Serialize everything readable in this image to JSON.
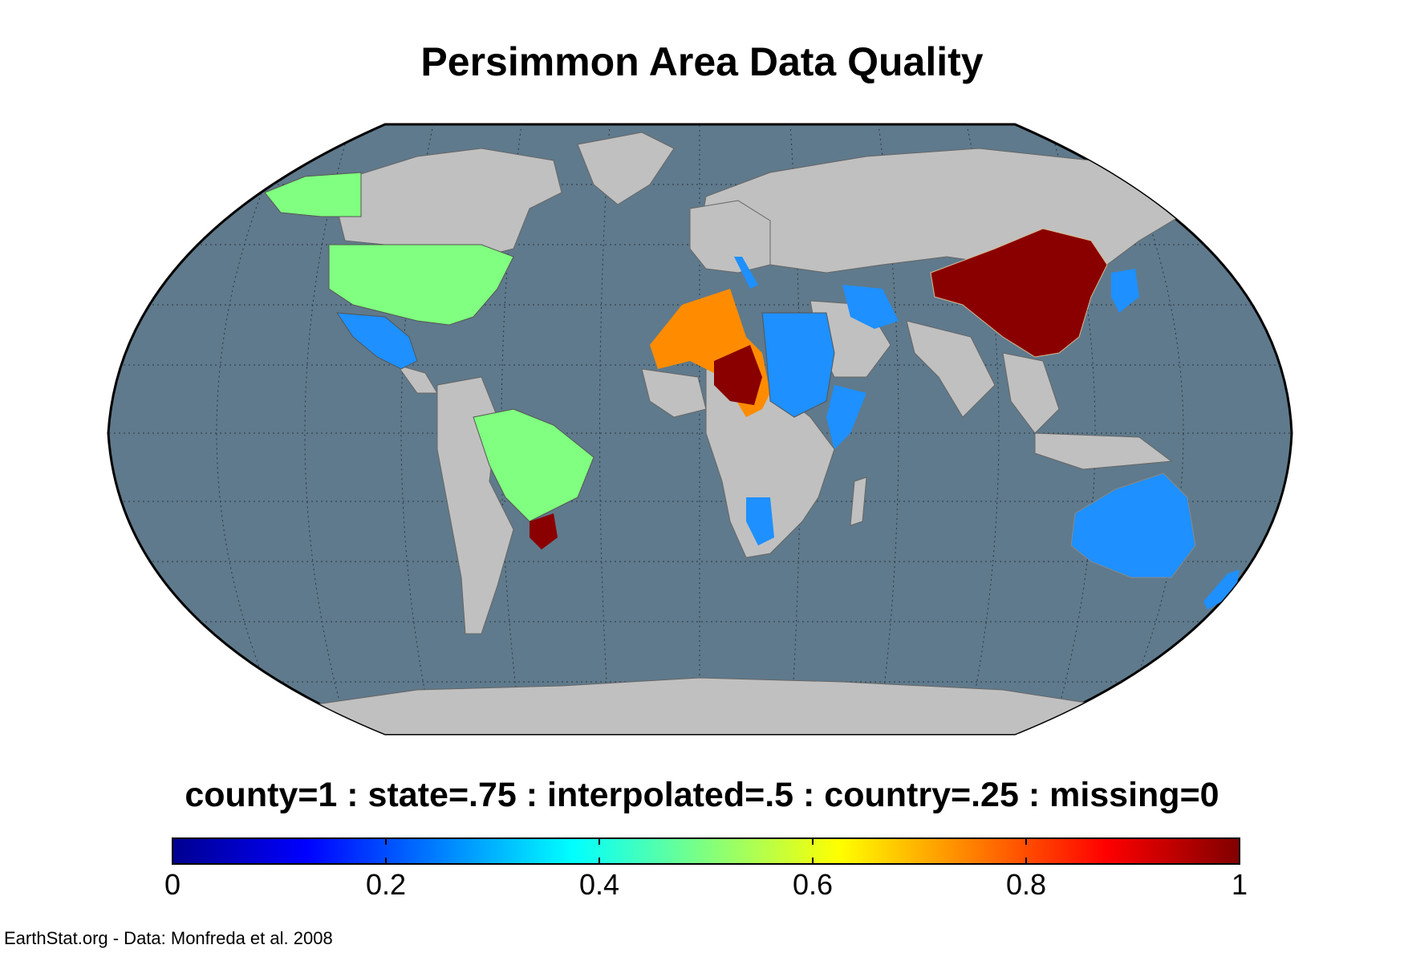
{
  "title": "Persimmon Area Data Quality",
  "legend": {
    "title": "county=1 : state=.75 : interpolated=.5 : country=.25 : missing=0",
    "colormap": "jet",
    "range": [
      0,
      1
    ],
    "ticks": [
      "0",
      "0.2",
      "0.4",
      "0.6",
      "0.8",
      "1"
    ],
    "tick_values": [
      0,
      0.2,
      0.4,
      0.6,
      0.8,
      1
    ]
  },
  "credit": "EarthStat.org - Data: Monfreda et al. 2008",
  "colors": {
    "ocean": "#5f7a8c",
    "land_missing": "#c0c0c0",
    "state_075": "#8a0000",
    "state_orange": "#ff8c00",
    "interpolated_05": "#80ff80",
    "country_025": "#1e90ff",
    "graticule": "#2a3540"
  },
  "map": {
    "projection": "Robinson",
    "regions": [
      {
        "name": "China",
        "quality_color": "state_075"
      },
      {
        "name": "Niger / Chad region",
        "quality_color": "state_075"
      },
      {
        "name": "Southern Brazil",
        "quality_color": "state_075"
      },
      {
        "name": "Algeria / Mali / Chad",
        "quality_color": "state_orange"
      },
      {
        "name": "United States",
        "quality_color": "interpolated_05"
      },
      {
        "name": "Alaska",
        "quality_color": "interpolated_05"
      },
      {
        "name": "Brazil",
        "quality_color": "interpolated_05"
      },
      {
        "name": "Mexico",
        "quality_color": "country_025"
      },
      {
        "name": "Libya / Egypt / Sudan",
        "quality_color": "country_025"
      },
      {
        "name": "Iran",
        "quality_color": "country_025"
      },
      {
        "name": "Japan / Korea",
        "quality_color": "country_025"
      },
      {
        "name": "Australia",
        "quality_color": "country_025"
      },
      {
        "name": "New Zealand",
        "quality_color": "country_025"
      },
      {
        "name": "Namibia",
        "quality_color": "country_025"
      },
      {
        "name": "Somalia / Ethiopia",
        "quality_color": "country_025"
      },
      {
        "name": "Italy",
        "quality_color": "country_025"
      }
    ]
  }
}
